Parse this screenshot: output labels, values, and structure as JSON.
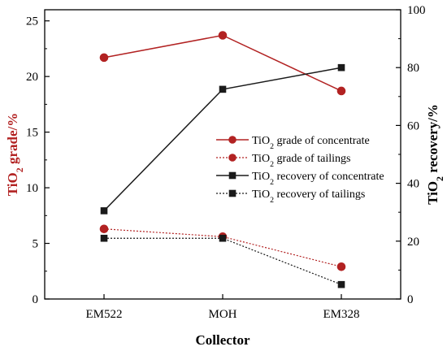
{
  "chart_data": {
    "type": "line",
    "categories": [
      "EM522",
      "MOH",
      "EM328"
    ],
    "xlabel": "Collector",
    "ylabel_left": {
      "base": "TiO",
      "sub": "2",
      "rest": " grade/%"
    },
    "ylabel_right": {
      "base": "TiO",
      "sub": "2",
      "rest": " recovery/%"
    },
    "ylim_left": [
      0,
      26
    ],
    "ylim_right": [
      0,
      100
    ],
    "yticks_left": [
      0,
      5,
      10,
      15,
      20,
      25
    ],
    "yticks_right": [
      0,
      20,
      40,
      60,
      80,
      100
    ],
    "series": [
      {
        "name": {
          "base": "TiO",
          "sub": "2",
          "rest": " grade of concentrate"
        },
        "axis": "left",
        "marker": "circle",
        "line": "solid",
        "color": "#b22222",
        "values": [
          21.7,
          23.7,
          18.7
        ]
      },
      {
        "name": {
          "base": "TiO",
          "sub": "2",
          "rest": " grade of tailings"
        },
        "axis": "left",
        "marker": "circle",
        "line": "dotted",
        "color": "#b22222",
        "values": [
          6.3,
          5.6,
          2.9
        ]
      },
      {
        "name": {
          "base": "TiO",
          "sub": "2",
          "rest": " recovery of concentrate"
        },
        "axis": "right",
        "marker": "square",
        "line": "solid",
        "color": "#1a1a1a",
        "values": [
          30.5,
          72.5,
          80.0
        ]
      },
      {
        "name": {
          "base": "TiO",
          "sub": "2",
          "rest": " recovery of tailings"
        },
        "axis": "right",
        "marker": "square",
        "line": "dotted",
        "color": "#1a1a1a",
        "values": [
          21.0,
          21.0,
          5.0
        ]
      }
    ],
    "grid": false,
    "legend_position": "center-right",
    "colors": {
      "left_axis_title": "#b22222",
      "right_axis_title": "#000000",
      "axes": "#000000"
    }
  }
}
